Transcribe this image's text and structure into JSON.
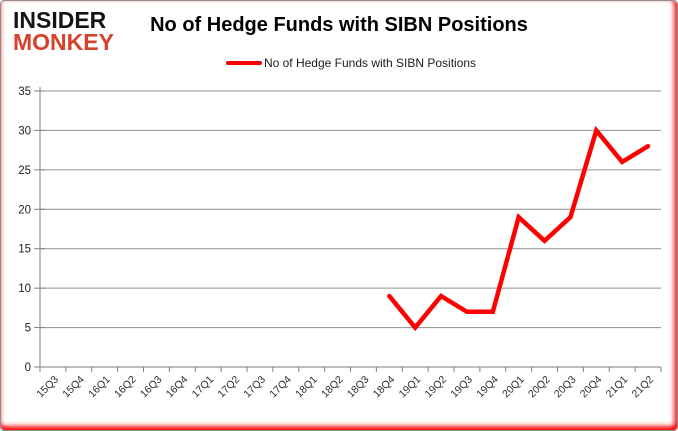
{
  "brand": {
    "line1": "INSIDER",
    "line2": "MONKEY"
  },
  "header": {
    "title": "No of Hedge Funds with SIBN Positions"
  },
  "legend": {
    "label": "No of Hedge Funds with SIBN Positions",
    "color": "#fe0000"
  },
  "chart_data": {
    "type": "line",
    "title": "No of Hedge Funds with SIBN Positions",
    "categories": [
      "15Q3",
      "15Q4",
      "16Q1",
      "16Q2",
      "16Q3",
      "16Q4",
      "17Q1",
      "17Q2",
      "17Q3",
      "17Q4",
      "18Q1",
      "18Q2",
      "18Q3",
      "18Q4",
      "19Q1",
      "19Q2",
      "19Q3",
      "19Q4",
      "20Q1",
      "20Q2",
      "20Q3",
      "20Q4",
      "21Q1",
      "21Q2"
    ],
    "series": [
      {
        "name": "No of Hedge Funds with SIBN Positions",
        "color": "#fe0000",
        "values": [
          null,
          null,
          null,
          null,
          null,
          null,
          null,
          null,
          null,
          null,
          null,
          null,
          null,
          9,
          5,
          9,
          7,
          7,
          19,
          16,
          19,
          30,
          26,
          28
        ]
      }
    ],
    "xlabel": "",
    "ylabel": "",
    "ylim": [
      0,
      35
    ],
    "ytick_step": 5,
    "grid": true,
    "legend_position": "top",
    "gridline_color": "#919191",
    "axis_color": "#7f7f7f",
    "label_color": "#303030"
  }
}
